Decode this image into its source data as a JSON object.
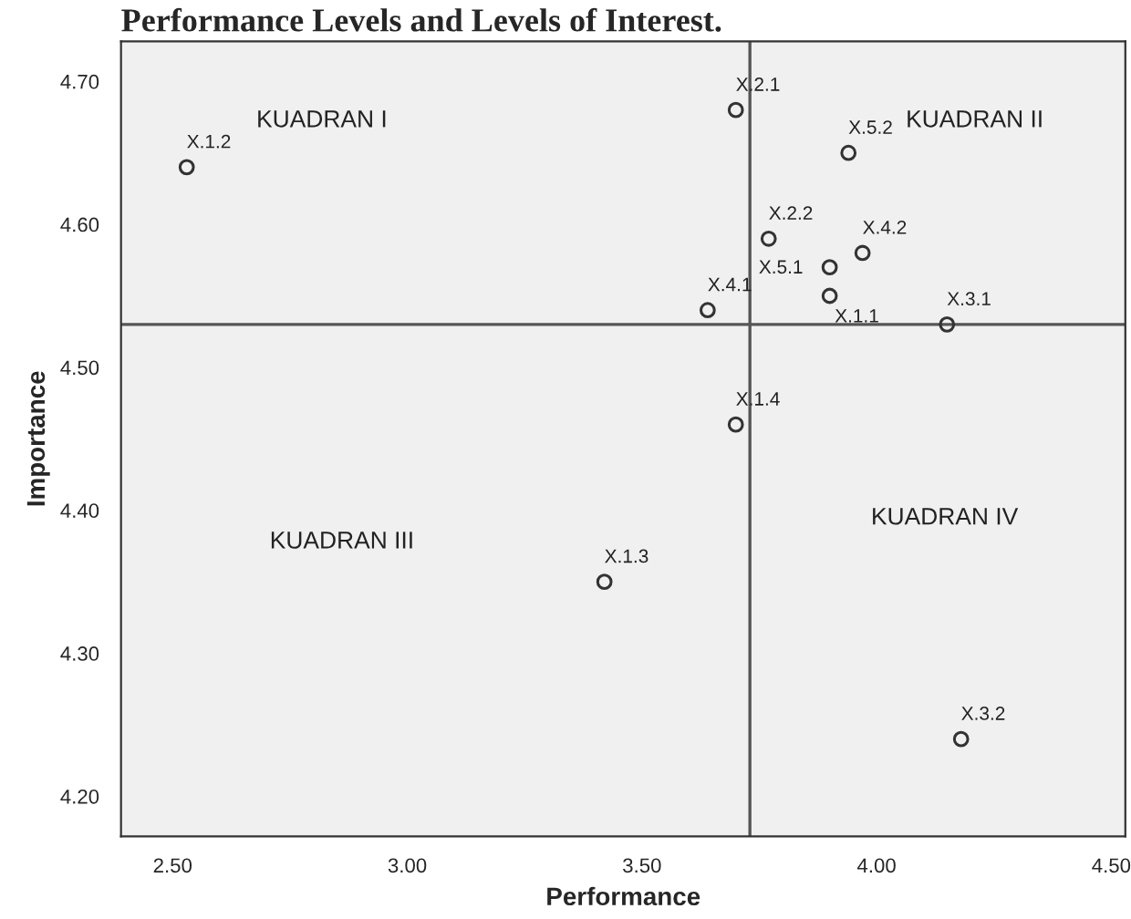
{
  "chart_data": {
    "type": "scatter",
    "title": "Performance Levels and Levels of Interest.",
    "xlabel": "Performance",
    "ylabel": "Importance",
    "series": [
      {
        "color": "#333333",
        "x": [
          2.53,
          3.7,
          3.94,
          3.77,
          3.9,
          3.97,
          3.64,
          3.9,
          4.15,
          3.7,
          3.42,
          4.18
        ],
        "values": [
          4.64,
          4.68,
          4.65,
          4.59,
          4.57,
          4.58,
          4.54,
          4.55,
          4.53,
          4.46,
          4.35,
          4.24
        ]
      }
    ],
    "annotations": [
      {
        "text": "X.1.2",
        "x": 2.53,
        "y": 4.64
      },
      {
        "text": "X.2.1",
        "x": 3.7,
        "y": 4.68
      },
      {
        "text": "X.5.2",
        "x": 3.94,
        "y": 4.65
      },
      {
        "text": "X.2.2",
        "x": 3.77,
        "y": 4.59
      },
      {
        "text": "X.5.1",
        "x": 3.9,
        "y": 4.57
      },
      {
        "text": "X.4.2",
        "x": 3.97,
        "y": 4.58
      },
      {
        "text": "X.4.1",
        "x": 3.64,
        "y": 4.54
      },
      {
        "text": "X.1.1",
        "x": 3.9,
        "y": 4.55
      },
      {
        "text": "X.3.1",
        "x": 4.15,
        "y": 4.53
      },
      {
        "text": "X.1.4",
        "x": 3.7,
        "y": 4.46
      },
      {
        "text": "X.1.3",
        "x": 3.42,
        "y": 4.35
      },
      {
        "text": "X.3.2",
        "x": 4.18,
        "y": 4.24
      },
      "KUADRAN I",
      "KUADRAN II",
      "KUADRAN III",
      "KUADRAN IV"
    ],
    "ref_lines": [
      {
        "axis": "x",
        "value": 3.73,
        "color": "#555555"
      },
      {
        "axis": "y",
        "value": 4.53,
        "color": "#555555"
      }
    ],
    "xlim": [
      2.39,
      4.53
    ],
    "xticks": [
      {
        "value": 2.5,
        "label": "2.50"
      },
      {
        "value": 3.0,
        "label": "3.00"
      },
      {
        "value": 3.5,
        "label": "3.50"
      },
      {
        "value": 4.0,
        "label": "4.00"
      },
      {
        "value": 4.5,
        "label": "4.50"
      }
    ],
    "ylim": [
      4.172,
      4.728
    ],
    "yticks": [
      {
        "value": 4.2,
        "label": "4.20"
      },
      {
        "value": 4.3,
        "label": "4.30"
      },
      {
        "value": 4.4,
        "label": "4.40"
      },
      {
        "value": 4.5,
        "label": "4.50"
      },
      {
        "value": 4.6,
        "label": "4.60"
      },
      {
        "value": 4.7,
        "label": "4.70"
      }
    ],
    "marker": "circle",
    "grid": false,
    "legend": false
  }
}
